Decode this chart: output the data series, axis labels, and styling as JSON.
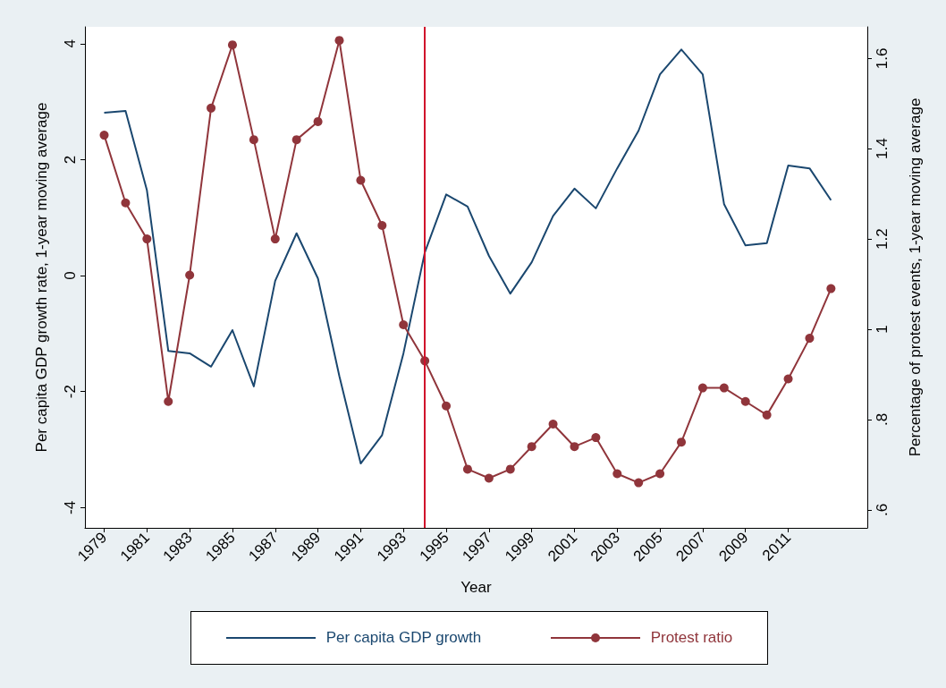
{
  "chart_data": {
    "type": "line",
    "xlabel": "Year",
    "ylabel": "Per capita GDP growth rate, 1-year moving average",
    "y2label": "Percentage of protest events, 1-year moving average",
    "x": [
      1979,
      1980,
      1981,
      1982,
      1983,
      1984,
      1985,
      1986,
      1987,
      1988,
      1989,
      1990,
      1991,
      1992,
      1993,
      1994,
      1995,
      1996,
      1997,
      1998,
      1999,
      2000,
      2001,
      2002,
      2003,
      2004,
      2005,
      2006,
      2007,
      2008,
      2009,
      2010,
      2011,
      2012,
      2013
    ],
    "series": [
      {
        "name": "Per capita GDP growth",
        "color": "#1a476f",
        "marker": "none",
        "values": [
          2.81,
          2.84,
          1.47,
          -1.3,
          -1.34,
          -1.57,
          -0.94,
          -1.91,
          -0.09,
          0.73,
          -0.05,
          -1.73,
          -3.24,
          -2.75,
          -1.34,
          0.4,
          1.4,
          1.19,
          0.34,
          -0.31,
          0.23,
          1.03,
          1.5,
          1.16,
          1.85,
          2.5,
          3.47,
          3.9,
          3.47,
          1.23,
          0.52,
          0.56,
          1.9,
          1.85,
          1.3
        ]
      },
      {
        "name": "Protest ratio",
        "color": "#90353b",
        "marker": "circle",
        "axis": "y2",
        "values": [
          1.43,
          1.28,
          1.2,
          0.84,
          1.12,
          1.49,
          1.63,
          1.42,
          1.2,
          1.42,
          1.46,
          1.64,
          1.33,
          1.23,
          1.01,
          0.93,
          0.83,
          0.69,
          0.67,
          0.69,
          0.74,
          0.79,
          0.74,
          0.76,
          0.68,
          0.66,
          0.68,
          0.75,
          0.87,
          0.87,
          0.84,
          0.81,
          0.89,
          0.98,
          1.09
        ]
      }
    ],
    "xlim": [
      1978.1,
      2014.7
    ],
    "xticks": [
      1979,
      1981,
      1983,
      1985,
      1987,
      1989,
      1991,
      1993,
      1995,
      1997,
      1999,
      2001,
      2003,
      2005,
      2007,
      2009,
      2011
    ],
    "ylim": [
      -4.35,
      4.29
    ],
    "yticks": [
      -4,
      -2,
      0,
      2,
      4
    ],
    "y2lim": [
      0.56,
      1.67
    ],
    "y2ticks": [
      {
        "value": 0.6,
        "label": ".6"
      },
      {
        "value": 0.8,
        "label": ".8"
      },
      {
        "value": 1,
        "label": "1"
      },
      {
        "value": 1.2,
        "label": "1.2"
      },
      {
        "value": 1.4,
        "label": "1.4"
      },
      {
        "value": 1.6,
        "label": "1.6"
      }
    ],
    "ref_lines": [
      {
        "axis": "x",
        "value": 1994,
        "color": "#d0112b"
      }
    ],
    "grid": false,
    "legend": "bottom",
    "line_style": "solid"
  }
}
